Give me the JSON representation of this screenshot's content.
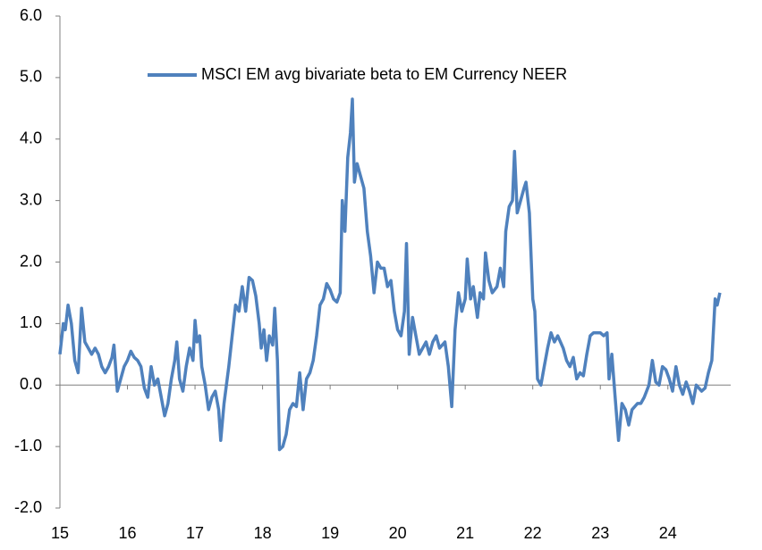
{
  "chart_data": {
    "type": "line",
    "x": [
      15.0,
      15.05,
      15.08,
      15.12,
      15.17,
      15.22,
      15.27,
      15.32,
      15.37,
      15.42,
      15.47,
      15.52,
      15.57,
      15.62,
      15.67,
      15.72,
      15.77,
      15.8,
      15.85,
      15.9,
      15.95,
      16.0,
      16.05,
      16.1,
      16.15,
      16.2,
      16.25,
      16.3,
      16.35,
      16.4,
      16.45,
      16.5,
      16.55,
      16.6,
      16.65,
      16.7,
      16.73,
      16.77,
      16.82,
      16.87,
      16.92,
      16.97,
      17.0,
      17.03,
      17.07,
      17.1,
      17.15,
      17.2,
      17.25,
      17.3,
      17.35,
      17.38,
      17.43,
      17.5,
      17.55,
      17.6,
      17.65,
      17.7,
      17.75,
      17.8,
      17.85,
      17.9,
      17.95,
      17.98,
      18.02,
      18.06,
      18.1,
      18.15,
      18.18,
      18.22,
      18.25,
      18.3,
      18.35,
      18.4,
      18.45,
      18.5,
      18.55,
      18.6,
      18.65,
      18.7,
      18.75,
      18.8,
      18.85,
      18.9,
      18.95,
      19.0,
      19.05,
      19.1,
      19.15,
      19.18,
      19.22,
      19.26,
      19.3,
      19.33,
      19.36,
      19.4,
      19.45,
      19.5,
      19.55,
      19.6,
      19.65,
      19.7,
      19.75,
      19.8,
      19.85,
      19.9,
      19.95,
      20.0,
      20.05,
      20.1,
      20.13,
      20.17,
      20.22,
      20.27,
      20.32,
      20.37,
      20.42,
      20.47,
      20.52,
      20.57,
      20.62,
      20.7,
      20.75,
      20.8,
      20.85,
      20.9,
      20.95,
      21.0,
      21.03,
      21.08,
      21.12,
      21.18,
      21.22,
      21.27,
      21.3,
      21.35,
      21.4,
      21.47,
      21.52,
      21.57,
      21.6,
      21.65,
      21.7,
      21.73,
      21.77,
      21.82,
      21.87,
      21.9,
      21.95,
      22.0,
      22.03,
      22.07,
      22.12,
      22.17,
      22.22,
      22.27,
      22.32,
      22.37,
      22.45,
      22.5,
      22.55,
      22.6,
      22.65,
      22.7,
      22.75,
      22.8,
      22.85,
      22.9,
      22.95,
      23.0,
      23.05,
      23.1,
      23.13,
      23.17,
      23.22,
      23.27,
      23.32,
      23.37,
      23.42,
      23.47,
      23.55,
      23.6,
      23.65,
      23.72,
      23.77,
      23.82,
      23.87,
      23.92,
      23.97,
      24.02,
      24.07,
      24.12,
      24.17,
      24.22,
      24.27,
      24.32,
      24.37,
      24.42,
      24.5,
      24.55,
      24.6,
      24.65,
      24.7,
      24.73,
      24.77
    ],
    "series": [
      {
        "name": "MSCI EM avg bivariate beta to EM Currency NEER",
        "color": "#4f81bd",
        "values": [
          0.5,
          1.0,
          0.9,
          1.3,
          1.0,
          0.4,
          0.2,
          1.25,
          0.7,
          0.6,
          0.5,
          0.6,
          0.5,
          0.3,
          0.2,
          0.3,
          0.45,
          0.65,
          -0.1,
          0.1,
          0.3,
          0.4,
          0.55,
          0.45,
          0.4,
          0.3,
          -0.05,
          -0.2,
          0.3,
          0.0,
          0.1,
          -0.2,
          -0.5,
          -0.3,
          0.1,
          0.4,
          0.7,
          0.1,
          -0.1,
          0.3,
          0.6,
          0.4,
          1.05,
          0.7,
          0.8,
          0.3,
          0.0,
          -0.4,
          -0.2,
          -0.1,
          -0.4,
          -0.9,
          -0.3,
          0.3,
          0.8,
          1.3,
          1.2,
          1.6,
          1.2,
          1.75,
          1.7,
          1.45,
          1.0,
          0.6,
          0.9,
          0.4,
          0.8,
          0.65,
          1.25,
          0.4,
          -1.05,
          -1.0,
          -0.8,
          -0.4,
          -0.3,
          -0.35,
          0.2,
          -0.4,
          0.1,
          0.2,
          0.4,
          0.8,
          1.3,
          1.4,
          1.65,
          1.55,
          1.4,
          1.35,
          1.5,
          3.0,
          2.5,
          3.7,
          4.1,
          4.65,
          3.3,
          3.6,
          3.4,
          3.2,
          2.5,
          2.1,
          1.5,
          2.0,
          1.9,
          1.9,
          1.6,
          1.7,
          1.2,
          0.9,
          0.8,
          1.2,
          2.3,
          0.5,
          1.1,
          0.8,
          0.5,
          0.6,
          0.7,
          0.5,
          0.7,
          0.8,
          0.6,
          0.7,
          0.3,
          -0.35,
          0.9,
          1.5,
          1.2,
          1.4,
          2.05,
          1.4,
          1.6,
          1.1,
          1.5,
          1.4,
          2.15,
          1.7,
          1.5,
          1.6,
          1.9,
          1.6,
          2.5,
          2.9,
          3.0,
          3.8,
          2.8,
          3.0,
          3.2,
          3.3,
          2.8,
          1.4,
          1.2,
          0.1,
          0.0,
          0.3,
          0.6,
          0.85,
          0.7,
          0.8,
          0.6,
          0.4,
          0.3,
          0.45,
          0.1,
          0.2,
          0.15,
          0.5,
          0.8,
          0.85,
          0.85,
          0.85,
          0.8,
          0.85,
          0.1,
          0.5,
          -0.2,
          -0.9,
          -0.3,
          -0.4,
          -0.65,
          -0.4,
          -0.3,
          -0.3,
          -0.2,
          0.0,
          0.4,
          0.05,
          0.0,
          0.3,
          0.25,
          0.1,
          -0.1,
          0.3,
          0.0,
          -0.15,
          0.05,
          -0.1,
          -0.3,
          0.0,
          -0.1,
          -0.05,
          0.2,
          0.4,
          1.4,
          1.3,
          1.5
        ]
      }
    ],
    "xlim": [
      15,
      24.93
    ],
    "xticks": [
      15,
      16,
      17,
      18,
      19,
      20,
      21,
      22,
      23,
      24
    ],
    "ylim": [
      -2,
      6
    ],
    "yticks": [
      {
        "value": -2,
        "label": "-2.0"
      },
      {
        "value": -1,
        "label": "-1.0"
      },
      {
        "value": 0,
        "label": "0.0"
      },
      {
        "value": 1,
        "label": "1.0"
      },
      {
        "value": 2,
        "label": "2.0"
      },
      {
        "value": 3,
        "label": "3.0"
      },
      {
        "value": 4,
        "label": "4.0"
      },
      {
        "value": 5,
        "label": "5.0"
      },
      {
        "value": 6,
        "label": "6.0"
      }
    ],
    "legend": "top-center",
    "grid": false
  }
}
